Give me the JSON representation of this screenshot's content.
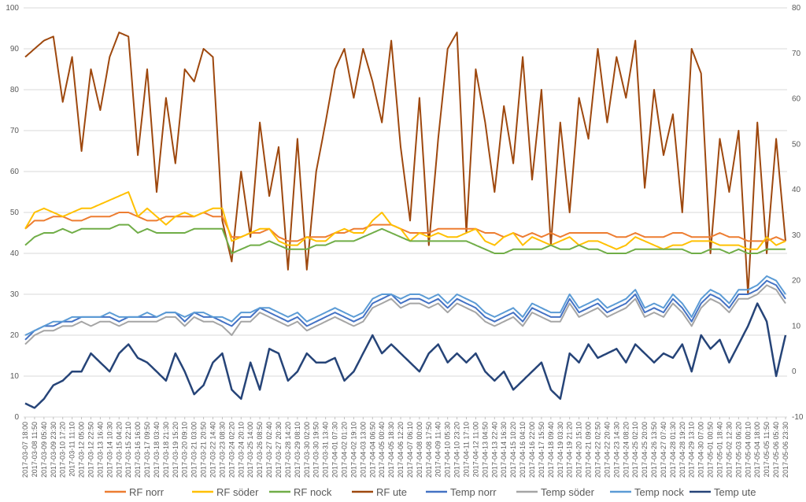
{
  "chart_data": {
    "type": "line",
    "title": "",
    "xlabel": "",
    "ylabel_left": "",
    "ylabel_right": "",
    "grid": true,
    "legend_position": "bottom",
    "y_left": {
      "min": 0,
      "max": 100,
      "step": 10,
      "ticks": [
        "0",
        "10",
        "20",
        "30",
        "40",
        "50",
        "60",
        "70",
        "80",
        "90",
        "100"
      ]
    },
    "y_right": {
      "min": -10,
      "max": 80,
      "step": 10,
      "ticks": [
        "-10",
        "0",
        "10",
        "20",
        "30",
        "40",
        "50",
        "60",
        "70",
        "80"
      ]
    },
    "x_tick_labels": [
      "2017-03-07 18:00",
      "2017-03-08 11:50",
      "2017-03-09 05:40",
      "2017-03-09 23:30",
      "2017-03-10 17:20",
      "2017-03-11 11:10",
      "2017-03-12 05:00",
      "2017-03-12 22:50",
      "2017-03-13 16:40",
      "2017-03-14 10:30",
      "2017-03-15 04:20",
      "2017-03-15 22:10",
      "2017-03-16 16:00",
      "2017-03-17 09:50",
      "2017-03-18 03:40",
      "2017-03-18 21:30",
      "2017-03-19 15:20",
      "2017-03-20 09:10",
      "2017-03-21 03:00",
      "2017-03-21 20:50",
      "2017-03-22 14:40",
      "2017-03-23 08:30",
      "2017-03-24 02:20",
      "2017-03-24 20:10",
      "2017-03-25 14:00",
      "2017-03-26 08:50",
      "2017-03-27 02:40",
      "2017-03-27 20:30",
      "2017-03-28 14:20",
      "2017-03-29 08:10",
      "2017-03-30 02:00",
      "2017-03-30 19:50",
      "2017-03-31 13:40",
      "2017-04-01 07:30",
      "2017-04-02 01:20",
      "2017-04-02 19:10",
      "2017-04-03 13:00",
      "2017-04-04 06:50",
      "2017-04-05 00:40",
      "2017-04-05 18:30",
      "2017-04-06 12:20",
      "2017-04-07 06:10",
      "2017-04-08 00:00",
      "2017-04-08 17:50",
      "2017-04-09 11:40",
      "2017-04-10 05:30",
      "2017-04-10 23:20",
      "2017-04-11 17:10",
      "2017-04-12 11:00",
      "2017-04-13 04:50",
      "2017-04-13 22:40",
      "2017-04-14 16:30",
      "2017-04-15 10:20",
      "2017-04-16 04:10",
      "2017-04-16 22:00",
      "2017-04-17 15:50",
      "2017-04-18 09:40",
      "2017-04-19 03:30",
      "2017-04-19 21:20",
      "2017-04-20 15:10",
      "2017-04-21 09:00",
      "2017-04-22 02:50",
      "2017-04-22 20:40",
      "2017-04-23 14:30",
      "2017-04-24 08:20",
      "2017-04-25 02:10",
      "2017-04-25 20:00",
      "2017-04-26 13:50",
      "2017-04-27 07:40",
      "2017-04-28 01:30",
      "2017-04-28 19:20",
      "2017-04-29 13:10",
      "2017-04-30 07:00",
      "2017-05-01 00:50",
      "2017-05-01 18:40",
      "2017-05-02 12:30",
      "2017-05-03 06:20",
      "2017-05-04 00:10",
      "2017-05-04 18:00",
      "2017-05-05 11:50",
      "2017-05-06 05:40",
      "2017-05-06 23:30"
    ],
    "series": [
      {
        "name": "RF norr",
        "axis": "left",
        "color": "#ED7D31",
        "width": 2,
        "values": [
          46,
          48,
          48,
          49,
          49,
          48,
          48,
          49,
          49,
          49,
          50,
          50,
          49,
          48,
          48,
          49,
          49,
          49,
          49,
          50,
          49,
          49,
          44,
          44,
          45,
          45,
          46,
          44,
          43,
          43,
          44,
          44,
          44,
          45,
          45,
          46,
          46,
          47,
          47,
          47,
          46,
          45,
          45,
          45,
          46,
          46,
          46,
          46,
          46,
          45,
          45,
          44,
          45,
          44,
          45,
          44,
          45,
          44,
          45,
          45,
          45,
          45,
          45,
          44,
          44,
          45,
          44,
          44,
          44,
          45,
          45,
          44,
          44,
          44,
          45,
          44,
          44,
          43,
          43,
          43,
          44,
          43
        ]
      },
      {
        "name": "RF söder",
        "axis": "left",
        "color": "#FFC000",
        "width": 2,
        "values": [
          46,
          50,
          51,
          50,
          49,
          50,
          51,
          51,
          52,
          53,
          54,
          55,
          49,
          51,
          49,
          47,
          49,
          50,
          49,
          50,
          51,
          51,
          43,
          44,
          45,
          46,
          46,
          43,
          42,
          42,
          44,
          43,
          43,
          45,
          46,
          45,
          45,
          48,
          50,
          47,
          46,
          43,
          45,
          44,
          45,
          44,
          44,
          45,
          46,
          43,
          42,
          44,
          45,
          42,
          44,
          43,
          42,
          43,
          44,
          42,
          43,
          43,
          42,
          41,
          42,
          44,
          43,
          42,
          41,
          42,
          42,
          43,
          43,
          43,
          42,
          42,
          42,
          41,
          41,
          44,
          42,
          43
        ]
      },
      {
        "name": "RF nock",
        "axis": "left",
        "color": "#70AD47",
        "width": 2,
        "values": [
          42,
          44,
          45,
          45,
          46,
          45,
          46,
          46,
          46,
          46,
          47,
          47,
          45,
          46,
          45,
          45,
          45,
          45,
          46,
          46,
          46,
          46,
          40,
          41,
          42,
          42,
          43,
          42,
          41,
          41,
          41,
          42,
          42,
          43,
          43,
          43,
          44,
          45,
          46,
          45,
          44,
          43,
          43,
          43,
          43,
          43,
          43,
          43,
          42,
          41,
          40,
          40,
          41,
          41,
          41,
          41,
          42,
          41,
          41,
          42,
          41,
          41,
          40,
          40,
          40,
          41,
          41,
          41,
          41,
          41,
          41,
          40,
          40,
          41,
          41,
          40,
          41,
          40,
          40,
          41,
          41,
          41
        ]
      },
      {
        "name": "RF ute",
        "axis": "left",
        "color": "#9E480E",
        "width": 2,
        "values": [
          88,
          90,
          92,
          93,
          77,
          88,
          65,
          85,
          75,
          88,
          94,
          93,
          64,
          85,
          55,
          78,
          62,
          85,
          82,
          90,
          88,
          48,
          38,
          60,
          44,
          72,
          54,
          66,
          36,
          68,
          36,
          60,
          72,
          85,
          90,
          78,
          90,
          82,
          72,
          92,
          66,
          48,
          78,
          42,
          68,
          90,
          94,
          45,
          85,
          72,
          55,
          76,
          62,
          88,
          58,
          80,
          42,
          72,
          50,
          78,
          68,
          90,
          72,
          88,
          78,
          92,
          56,
          80,
          64,
          74,
          50,
          90,
          84,
          40,
          68,
          55,
          70,
          30,
          72,
          40,
          68,
          43
        ]
      },
      {
        "name": "Temp norr",
        "axis": "right",
        "color": "#4472C4",
        "width": 2,
        "values": [
          7,
          9,
          10,
          10,
          11,
          11,
          12,
          12,
          12,
          12,
          11,
          12,
          12,
          12,
          12,
          13,
          13,
          11,
          13,
          12,
          12,
          11,
          10,
          12,
          12,
          14,
          13,
          12,
          11,
          12,
          10,
          11,
          12,
          13,
          12,
          11,
          12,
          15,
          16,
          17,
          15,
          16,
          16,
          15,
          16,
          14,
          16,
          15,
          14,
          12,
          11,
          12,
          13,
          11,
          14,
          13,
          12,
          12,
          16,
          13,
          14,
          15,
          13,
          14,
          15,
          17,
          13,
          14,
          13,
          16,
          14,
          11,
          15,
          17,
          16,
          14,
          17,
          17,
          18,
          20,
          19,
          16
        ]
      },
      {
        "name": "Temp söder",
        "axis": "right",
        "color": "#A5A5A5",
        "width": 2,
        "values": [
          6,
          8,
          9,
          9,
          10,
          10,
          11,
          10,
          11,
          11,
          10,
          11,
          11,
          11,
          11,
          12,
          12,
          10,
          12,
          11,
          11,
          10,
          8,
          11,
          11,
          13,
          12,
          11,
          10,
          11,
          9,
          10,
          11,
          12,
          11,
          10,
          11,
          14,
          15,
          16,
          14,
          15,
          15,
          14,
          15,
          13,
          15,
          14,
          13,
          11,
          10,
          11,
          12,
          10,
          13,
          12,
          11,
          11,
          15,
          12,
          13,
          14,
          12,
          13,
          14,
          16,
          12,
          13,
          12,
          15,
          13,
          10,
          14,
          16,
          15,
          13,
          16,
          16,
          17,
          19,
          18,
          15
        ]
      },
      {
        "name": "Temp nock",
        "axis": "right",
        "color": "#5B9BD5",
        "width": 2,
        "values": [
          8,
          9,
          10,
          11,
          11,
          12,
          12,
          12,
          12,
          13,
          12,
          12,
          12,
          13,
          12,
          13,
          13,
          12,
          13,
          13,
          12,
          12,
          11,
          13,
          13,
          14,
          14,
          13,
          12,
          13,
          11,
          12,
          13,
          14,
          13,
          12,
          13,
          16,
          17,
          17,
          16,
          17,
          17,
          16,
          17,
          15,
          17,
          16,
          15,
          13,
          12,
          13,
          14,
          12,
          15,
          14,
          13,
          13,
          17,
          14,
          15,
          16,
          14,
          15,
          16,
          18,
          14,
          15,
          14,
          17,
          15,
          12,
          16,
          18,
          17,
          15,
          18,
          18,
          19,
          21,
          20,
          17
        ]
      },
      {
        "name": "Temp ute",
        "axis": "right",
        "color": "#264478",
        "width": 2.5,
        "values": [
          -7,
          -8,
          -6,
          -3,
          -2,
          0,
          0,
          4,
          2,
          0,
          4,
          6,
          3,
          2,
          0,
          -2,
          4,
          0,
          -5,
          -3,
          2,
          4,
          -4,
          -6,
          2,
          -4,
          5,
          4,
          -2,
          0,
          4,
          2,
          2,
          3,
          -2,
          0,
          4,
          8,
          4,
          6,
          4,
          2,
          0,
          4,
          6,
          2,
          4,
          2,
          4,
          0,
          -2,
          0,
          -4,
          -2,
          0,
          2,
          -4,
          -6,
          4,
          2,
          6,
          3,
          4,
          5,
          2,
          6,
          4,
          2,
          4,
          3,
          6,
          0,
          8,
          5,
          7,
          2,
          6,
          10,
          15,
          11,
          -1,
          8
        ]
      }
    ]
  }
}
